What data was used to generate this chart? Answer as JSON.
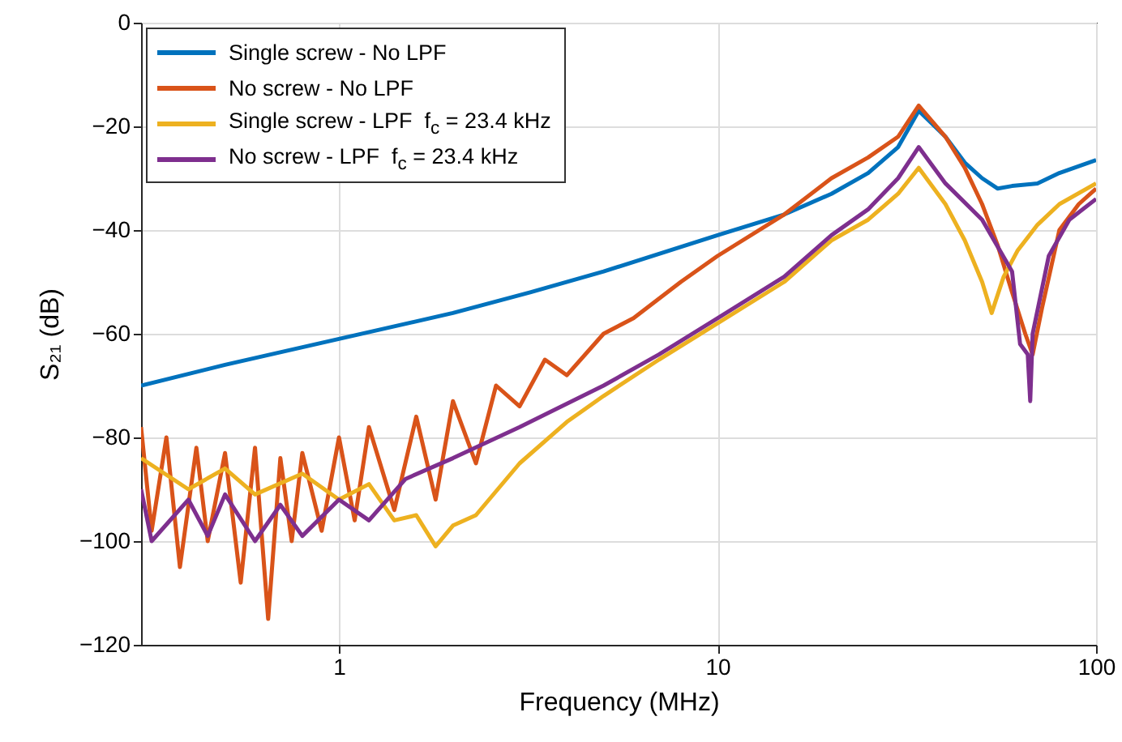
{
  "chart_data": {
    "type": "line",
    "xlabel": "Frequency (MHz)",
    "ylabel": "S₂₁ (dB)",
    "log": "x",
    "xlim": [
      0.3,
      100
    ],
    "xticks": [
      1,
      10,
      100
    ],
    "ylim": [
      -120,
      0
    ],
    "yticks": [
      -120,
      -100,
      -80,
      -60,
      -40,
      -20,
      0
    ],
    "grid": true,
    "legend": "top left",
    "line_style": "solid",
    "marker": "none",
    "series": [
      {
        "name": "Single screw - No LPF",
        "color": "#0072bd",
        "x": [
          0.3,
          0.5,
          1,
          2,
          3.2,
          5,
          10,
          15,
          20,
          25,
          30,
          34,
          40,
          45,
          50,
          55,
          60,
          70,
          80,
          100
        ],
        "values": [
          -70,
          -66,
          -61,
          -56,
          -52,
          -48,
          -41,
          -37,
          -33,
          -29,
          -24,
          -17,
          -22,
          -27,
          -30,
          -32,
          -31.5,
          -31,
          -29,
          -26.5
        ]
      },
      {
        "name": "No screw - No LPF",
        "color": "#d95319",
        "x": [
          0.3,
          0.32,
          0.35,
          0.38,
          0.42,
          0.45,
          0.5,
          0.55,
          0.6,
          0.65,
          0.7,
          0.75,
          0.8,
          0.9,
          1,
          1.1,
          1.2,
          1.4,
          1.6,
          1.8,
          2,
          2.3,
          2.6,
          3,
          3.5,
          4,
          5,
          6,
          8,
          10,
          15,
          20,
          25,
          30,
          34,
          40,
          45,
          50,
          55,
          60,
          65,
          68,
          72,
          80,
          90,
          100
        ],
        "values": [
          -78,
          -98,
          -80,
          -105,
          -82,
          -100,
          -83,
          -108,
          -82,
          -115,
          -84,
          -100,
          -83,
          -98,
          -80,
          -96,
          -78,
          -94,
          -76,
          -92,
          -73,
          -85,
          -70,
          -74,
          -65,
          -68,
          -60,
          -57,
          -50,
          -45,
          -37,
          -30,
          -26,
          -22,
          -16,
          -22,
          -28,
          -35,
          -43,
          -52,
          -60,
          -64,
          -55,
          -40,
          -35,
          -32
        ]
      },
      {
        "name": "Single screw - LPF  f$_{c}$ = 23.4 kHz",
        "color": "#edb120",
        "x": [
          0.3,
          0.4,
          0.5,
          0.6,
          0.8,
          1,
          1.2,
          1.4,
          1.6,
          1.8,
          2,
          2.3,
          3,
          4,
          5,
          7,
          10,
          15,
          20,
          25,
          30,
          34,
          40,
          45,
          50,
          53,
          57,
          62,
          70,
          80,
          100
        ],
        "values": [
          -84,
          -90,
          -86,
          -91,
          -87,
          -92,
          -89,
          -96,
          -95,
          -101,
          -97,
          -95,
          -85,
          -77,
          -72,
          -65,
          -58,
          -50,
          -42,
          -38,
          -33,
          -28,
          -35,
          -42,
          -50,
          -56,
          -49,
          -44,
          -39,
          -35,
          -31
        ]
      },
      {
        "name": "No screw - LPF  f$_{c}$ = 23.4 kHz",
        "color": "#7e2f8e",
        "x": [
          0.3,
          0.32,
          0.4,
          0.45,
          0.5,
          0.6,
          0.7,
          0.8,
          1,
          1.2,
          1.5,
          2,
          3,
          5,
          7,
          10,
          15,
          20,
          25,
          30,
          34,
          40,
          50,
          60,
          63,
          66,
          67,
          68,
          75,
          85,
          100
        ],
        "values": [
          -90,
          -100,
          -92,
          -99,
          -91,
          -100,
          -93,
          -99,
          -92,
          -96,
          -88,
          -84,
          -78,
          -70,
          -64,
          -57,
          -49,
          -41,
          -36,
          -30,
          -24,
          -31,
          -38,
          -48,
          -62,
          -64,
          -73,
          -60,
          -45,
          -38,
          -34
        ]
      }
    ]
  }
}
